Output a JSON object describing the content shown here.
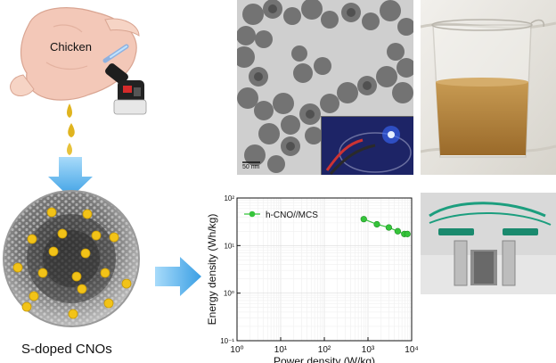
{
  "colors": {
    "arrow_blue": "#5bb8ee",
    "arrow_blue_dark": "#2f8fd6",
    "sulfur_yellow": "#f2c318",
    "carbon_gray": "#6b6b6b",
    "chicken_skin": "#f3c8b8",
    "oil_drop": "#e0b41f",
    "series_green": "#35c43a",
    "tem_bg": "#c8c8c8",
    "led_blue": "#2c5dff"
  },
  "left_panel": {
    "chicken_label": "Chicken",
    "caption": "S-doped CNOs",
    "icons": [
      "chicken-icon",
      "torch-icon",
      "oil-drops-icon",
      "down-arrow-icon",
      "carbon-onion-icon"
    ]
  },
  "middle": {
    "right_arrow_icon": "right-arrow-icon"
  },
  "tem_panel": {
    "scale_bar_label": "50 nm",
    "inset": "led-inset"
  },
  "photos": {
    "beaker": "beaker-photo",
    "device": "device-photo"
  },
  "chart_data": {
    "type": "scatter",
    "title": "",
    "xlabel": "Power density (W/kg)",
    "ylabel": "Energy density (Wh/kg)",
    "xscale": "log",
    "yscale": "log",
    "xlim": [
      1,
      10000
    ],
    "ylim": [
      0.1,
      100
    ],
    "x_tick_labels": [
      "10⁰",
      "10¹",
      "10²",
      "10³",
      "10⁴"
    ],
    "y_tick_labels": [
      "10⁻¹",
      "10⁰",
      "10¹",
      "10²"
    ],
    "grid": true,
    "legend_position": "top-left",
    "series": [
      {
        "name": "h-CNO//MCS",
        "color": "#35c43a",
        "points": [
          {
            "x": 800,
            "y": 36
          },
          {
            "x": 1600,
            "y": 28
          },
          {
            "x": 3000,
            "y": 24
          },
          {
            "x": 4800,
            "y": 20
          },
          {
            "x": 6800,
            "y": 17.5
          },
          {
            "x": 8000,
            "y": 17.5
          }
        ]
      }
    ]
  }
}
